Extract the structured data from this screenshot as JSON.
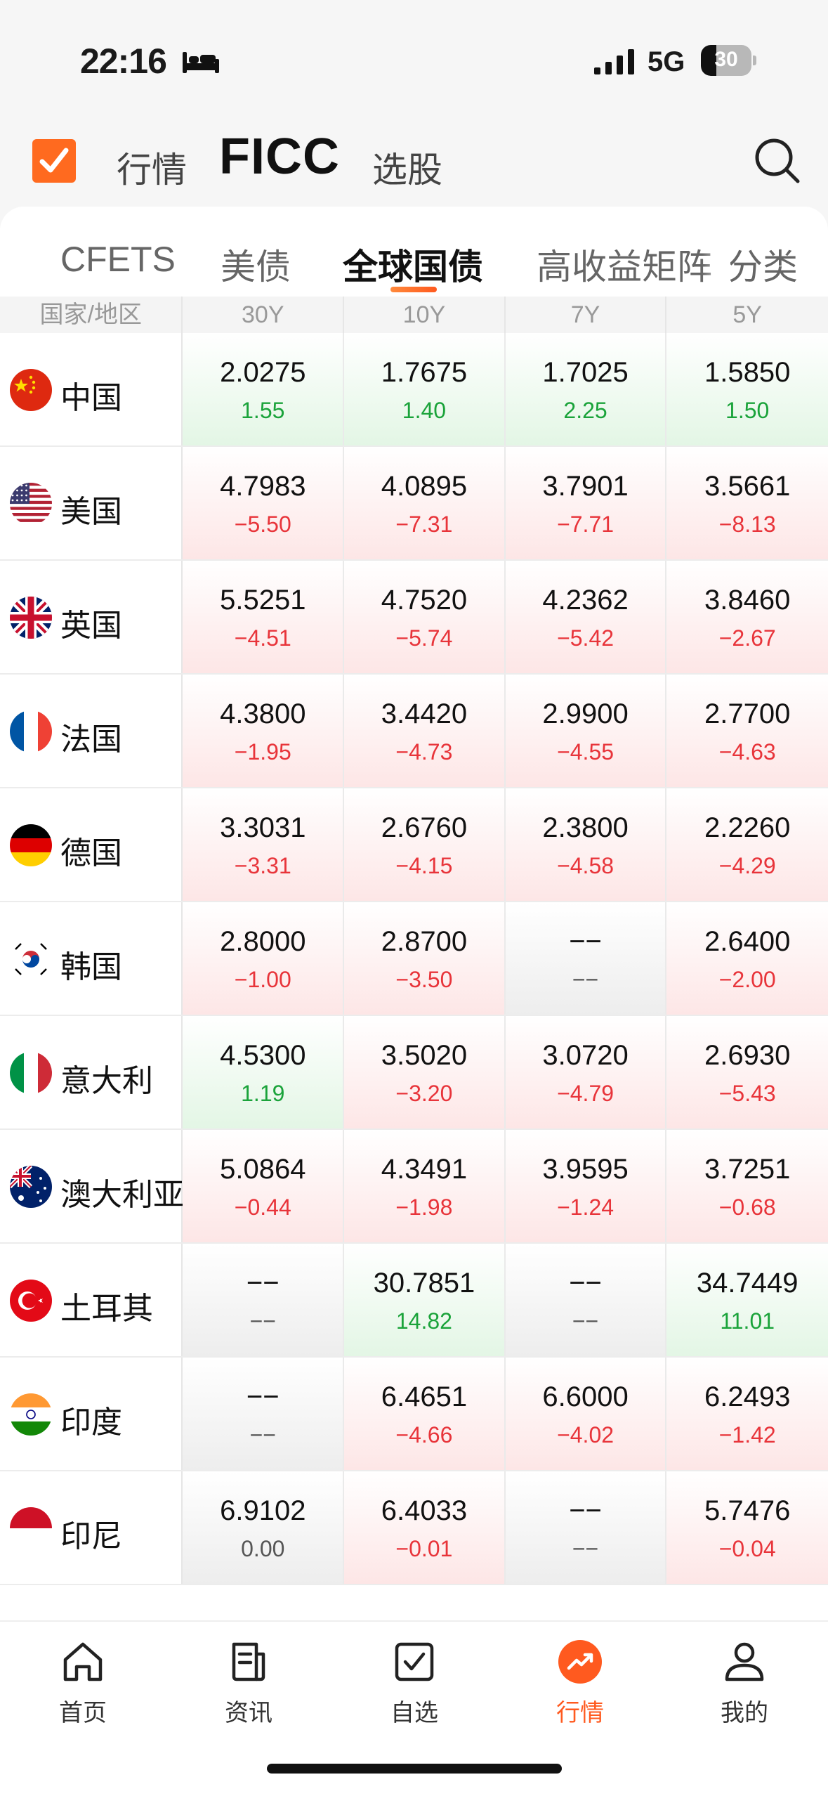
{
  "status_bar": {
    "time": "22:16",
    "network": "5G",
    "battery_level": "30"
  },
  "header": {
    "tabs": [
      "行情",
      "FICC",
      "选股"
    ],
    "active_tab": "FICC"
  },
  "sub_tabs": [
    "CFETS",
    "美债",
    "全球国债",
    "高收益矩阵",
    "分类"
  ],
  "active_sub_tab": "全球国债",
  "table": {
    "columns": [
      "国家/地区",
      "30Y",
      "10Y",
      "7Y",
      "5Y"
    ],
    "rows": [
      {
        "country": "中国",
        "flag": "china-flag-icon",
        "cells": [
          {
            "yield": "2.0275",
            "change": "1.55",
            "trend": "up"
          },
          {
            "yield": "1.7675",
            "change": "1.40",
            "trend": "up"
          },
          {
            "yield": "1.7025",
            "change": "2.25",
            "trend": "up"
          },
          {
            "yield": "1.5850",
            "change": "1.50",
            "trend": "up"
          }
        ]
      },
      {
        "country": "美国",
        "flag": "usa-flag-icon",
        "cells": [
          {
            "yield": "4.7983",
            "change": "−5.50",
            "trend": "down"
          },
          {
            "yield": "4.0895",
            "change": "−7.31",
            "trend": "down"
          },
          {
            "yield": "3.7901",
            "change": "−7.71",
            "trend": "down"
          },
          {
            "yield": "3.5661",
            "change": "−8.13",
            "trend": "down"
          }
        ]
      },
      {
        "country": "英国",
        "flag": "uk-flag-icon",
        "cells": [
          {
            "yield": "5.5251",
            "change": "−4.51",
            "trend": "down"
          },
          {
            "yield": "4.7520",
            "change": "−5.74",
            "trend": "down"
          },
          {
            "yield": "4.2362",
            "change": "−5.42",
            "trend": "down"
          },
          {
            "yield": "3.8460",
            "change": "−2.67",
            "trend": "down"
          }
        ]
      },
      {
        "country": "法国",
        "flag": "france-flag-icon",
        "cells": [
          {
            "yield": "4.3800",
            "change": "−1.95",
            "trend": "down"
          },
          {
            "yield": "3.4420",
            "change": "−4.73",
            "trend": "down"
          },
          {
            "yield": "2.9900",
            "change": "−4.55",
            "trend": "down"
          },
          {
            "yield": "2.7700",
            "change": "−4.63",
            "trend": "down"
          }
        ]
      },
      {
        "country": "德国",
        "flag": "germany-flag-icon",
        "cells": [
          {
            "yield": "3.3031",
            "change": "−3.31",
            "trend": "down"
          },
          {
            "yield": "2.6760",
            "change": "−4.15",
            "trend": "down"
          },
          {
            "yield": "2.3800",
            "change": "−4.58",
            "trend": "down"
          },
          {
            "yield": "2.2260",
            "change": "−4.29",
            "trend": "down"
          }
        ]
      },
      {
        "country": "韩国",
        "flag": "korea-flag-icon",
        "cells": [
          {
            "yield": "2.8000",
            "change": "−1.00",
            "trend": "down"
          },
          {
            "yield": "2.8700",
            "change": "−3.50",
            "trend": "down"
          },
          {
            "yield": "−−",
            "change": "−−",
            "trend": "flat"
          },
          {
            "yield": "2.6400",
            "change": "−2.00",
            "trend": "down"
          }
        ]
      },
      {
        "country": "意大利",
        "flag": "italy-flag-icon",
        "cells": [
          {
            "yield": "4.5300",
            "change": "1.19",
            "trend": "up"
          },
          {
            "yield": "3.5020",
            "change": "−3.20",
            "trend": "down"
          },
          {
            "yield": "3.0720",
            "change": "−4.79",
            "trend": "down"
          },
          {
            "yield": "2.6930",
            "change": "−5.43",
            "trend": "down"
          }
        ]
      },
      {
        "country": "澳大利亚",
        "flag": "australia-flag-icon",
        "cells": [
          {
            "yield": "5.0864",
            "change": "−0.44",
            "trend": "down"
          },
          {
            "yield": "4.3491",
            "change": "−1.98",
            "trend": "down"
          },
          {
            "yield": "3.9595",
            "change": "−1.24",
            "trend": "down"
          },
          {
            "yield": "3.7251",
            "change": "−0.68",
            "trend": "down"
          }
        ]
      },
      {
        "country": "土耳其",
        "flag": "turkey-flag-icon",
        "cells": [
          {
            "yield": "−−",
            "change": "−−",
            "trend": "flat"
          },
          {
            "yield": "30.7851",
            "change": "14.82",
            "trend": "up"
          },
          {
            "yield": "−−",
            "change": "−−",
            "trend": "flat"
          },
          {
            "yield": "34.7449",
            "change": "11.01",
            "trend": "up"
          }
        ]
      },
      {
        "country": "印度",
        "flag": "india-flag-icon",
        "cells": [
          {
            "yield": "−−",
            "change": "−−",
            "trend": "flat"
          },
          {
            "yield": "6.4651",
            "change": "−4.66",
            "trend": "down"
          },
          {
            "yield": "6.6000",
            "change": "−4.02",
            "trend": "down"
          },
          {
            "yield": "6.2493",
            "change": "−1.42",
            "trend": "down"
          }
        ]
      },
      {
        "country": "印尼",
        "flag": "indonesia-flag-icon",
        "cells": [
          {
            "yield": "6.9102",
            "change": "0.00",
            "trend": "flat"
          },
          {
            "yield": "6.4033",
            "change": "−0.01",
            "trend": "down"
          },
          {
            "yield": "−−",
            "change": "−−",
            "trend": "flat"
          },
          {
            "yield": "5.7476",
            "change": "−0.04",
            "trend": "down"
          }
        ]
      }
    ]
  },
  "bottom_nav": {
    "items": [
      {
        "label": "首页",
        "icon": "home-icon"
      },
      {
        "label": "资讯",
        "icon": "news-icon"
      },
      {
        "label": "自选",
        "icon": "watchlist-icon"
      },
      {
        "label": "行情",
        "icon": "market-icon"
      },
      {
        "label": "我的",
        "icon": "profile-icon"
      }
    ],
    "active": "行情"
  },
  "colors": {
    "accent": "#ff5a1f",
    "up": "#1aa33a",
    "down": "#e8343a"
  }
}
